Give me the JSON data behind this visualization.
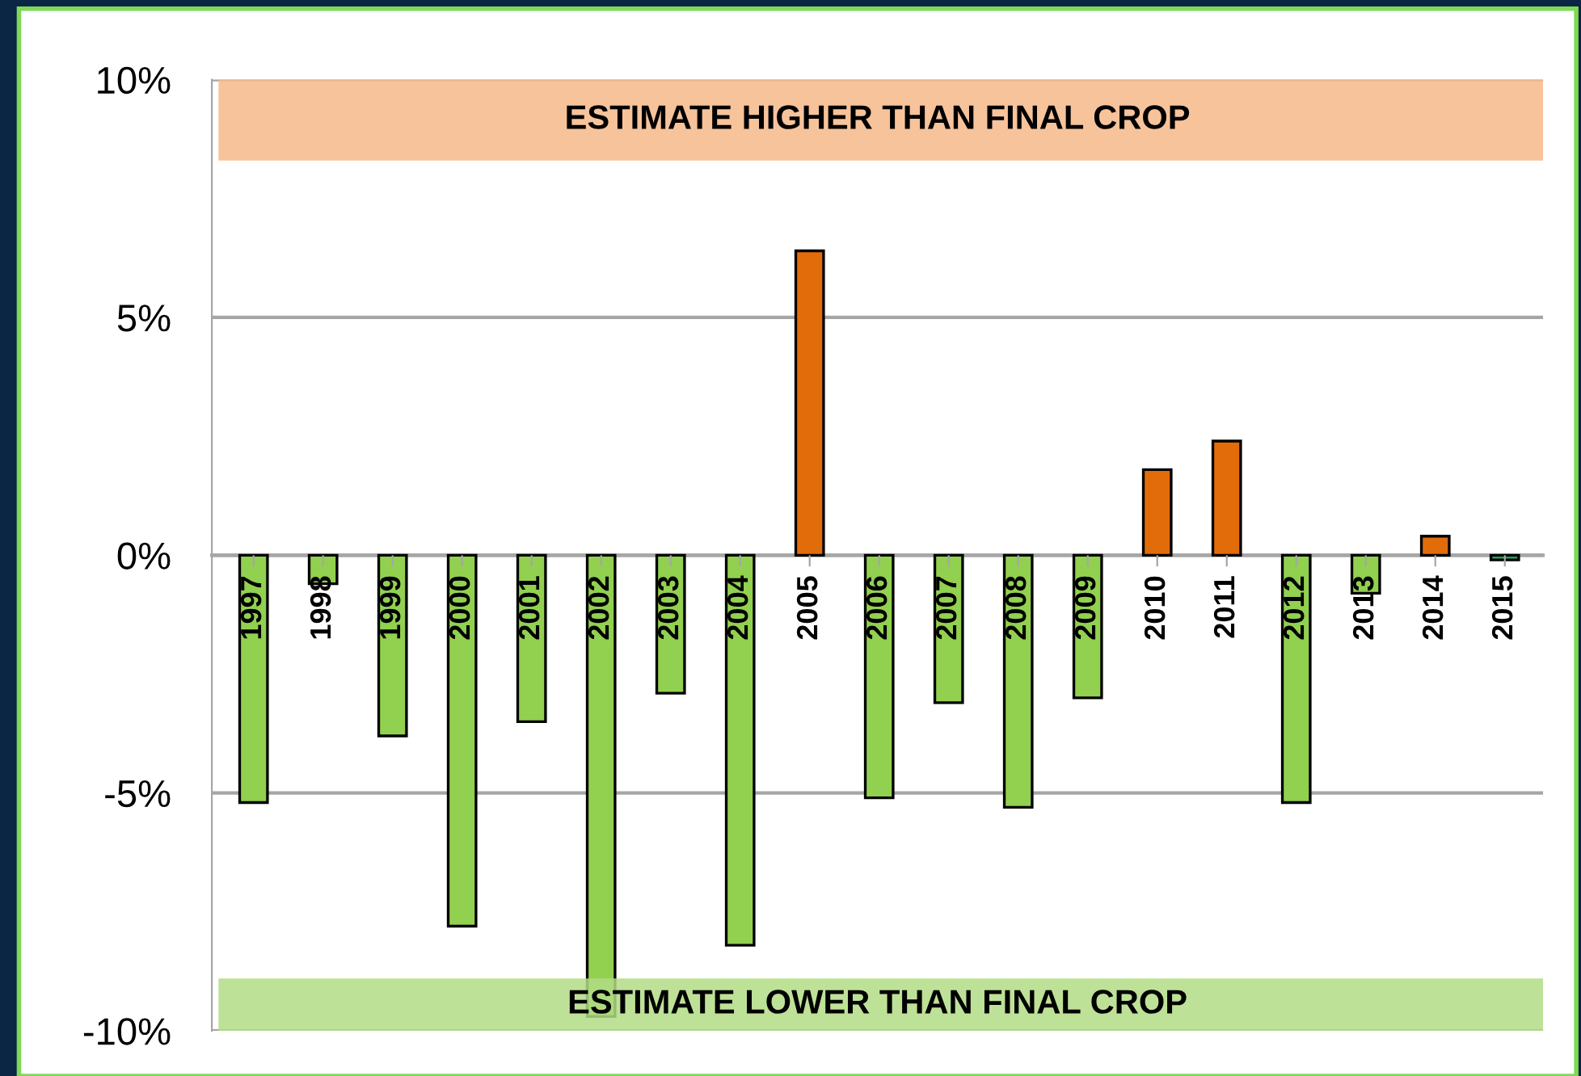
{
  "chart_data": {
    "type": "bar",
    "categories": [
      "1997",
      "1998",
      "1999",
      "2000",
      "2001",
      "2002",
      "2003",
      "2004",
      "2005",
      "2006",
      "2007",
      "2008",
      "2009",
      "2010",
      "2011",
      "2012",
      "2013",
      "2014",
      "2015"
    ],
    "values": [
      -5.2,
      -0.6,
      -3.8,
      -7.8,
      -3.5,
      -9.7,
      -2.9,
      -8.2,
      6.4,
      -5.1,
      -3.1,
      -5.3,
      -3.0,
      1.8,
      2.4,
      -5.2,
      -0.8,
      0.4,
      -0.1
    ],
    "colors": [
      "#92d050",
      "#92d050",
      "#92d050",
      "#92d050",
      "#92d050",
      "#92d050",
      "#92d050",
      "#92d050",
      "#e36c0a",
      "#92d050",
      "#92d050",
      "#92d050",
      "#92d050",
      "#e36c0a",
      "#e36c0a",
      "#92d050",
      "#92d050",
      "#e36c0a",
      "#2e9e5e"
    ],
    "ylim": [
      -10,
      10
    ],
    "yticks": [
      {
        "value": -10,
        "label": "-10%"
      },
      {
        "value": -5,
        "label": "-5%"
      },
      {
        "value": 0,
        "label": "0%"
      },
      {
        "value": 5,
        "label": "5%"
      },
      {
        "value": 10,
        "label": "10%"
      }
    ],
    "grid": "y",
    "bands": [
      {
        "axis": "y",
        "from": 8.3,
        "to": 10,
        "label": "ESTIMATE HIGHER THAN FINAL CROP",
        "color": "#f6b98a"
      },
      {
        "axis": "y",
        "from": -10,
        "to": -8.9,
        "label": "ESTIMATE LOWER THAN FINAL CROP",
        "color": "#b3dc86"
      }
    ]
  }
}
